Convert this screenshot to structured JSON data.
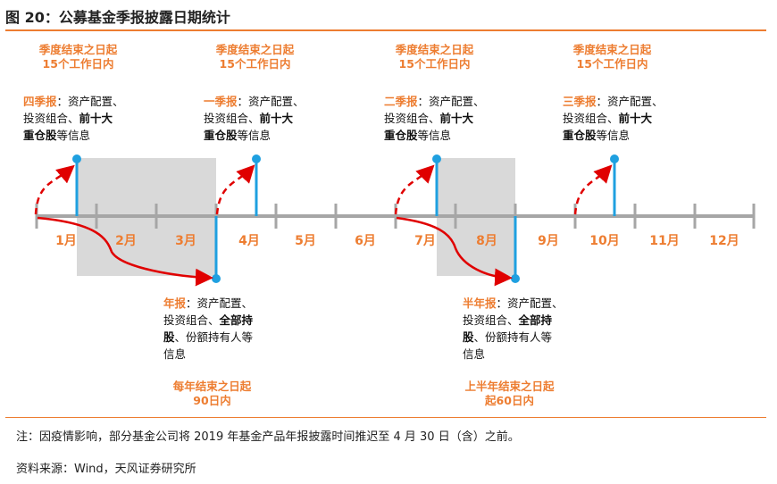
{
  "title": "图 20：公募基金季报披露日期统计",
  "months": [
    "1月",
    "2月",
    "3月",
    "4月",
    "5月",
    "6月",
    "7月",
    "8月",
    "9月",
    "10月",
    "11月",
    "12月"
  ],
  "quarter_deadline": [
    "季度结束之日起",
    "15个工作日内"
  ],
  "top_reports": [
    {
      "name": "四季报",
      "text1": "：资产配置、",
      "text2": "投资组合、",
      "bold2": "前十大",
      "bold3": "重仓股",
      "text3": "等信息"
    },
    {
      "name": "一季报",
      "text1": "：资产配置、",
      "text2": "投资组合、",
      "bold2": "前十大",
      "bold3": "重仓股",
      "text3": "等信息"
    },
    {
      "name": "二季报",
      "text1": "：资产配置、",
      "text2": "投资组合、",
      "bold2": "前十大",
      "bold3": "重仓股",
      "text3": "等信息"
    },
    {
      "name": "三季报",
      "text1": "：资产配置、",
      "text2": "投资组合、",
      "bold2": "前十大",
      "bold3": "重仓股",
      "text3": "等信息"
    }
  ],
  "annual": {
    "name": "年报",
    "text1": "：资产配置、",
    "text2": "投资组合、",
    "bold2": "全部持",
    "bold3": "股",
    "text3": "、份额持有人等",
    "text4": "信息",
    "deadline": [
      "每年结束之日起",
      "90日内"
    ]
  },
  "semiannual": {
    "name": "半年报",
    "text1": "：资产配置、",
    "text2": "投资组合、",
    "bold2": "全部持",
    "bold3": "股",
    "text3": "、份额持有人等",
    "text4": "信息",
    "deadline": [
      "上半年结束之日起",
      "起60日内"
    ]
  },
  "note": "注：因疫情影响，部分基金公司将 2019 年基金产品年报披露时间推迟至 4 月 30 日（含）之前。",
  "source": "资料来源：Wind，天风证券研究所",
  "colors": {
    "accent": "#ED7D31",
    "axis": "#A6A6A6",
    "shade": "#D9D9D9",
    "dashed": "#E00000",
    "marker": "#1FA0E0"
  }
}
